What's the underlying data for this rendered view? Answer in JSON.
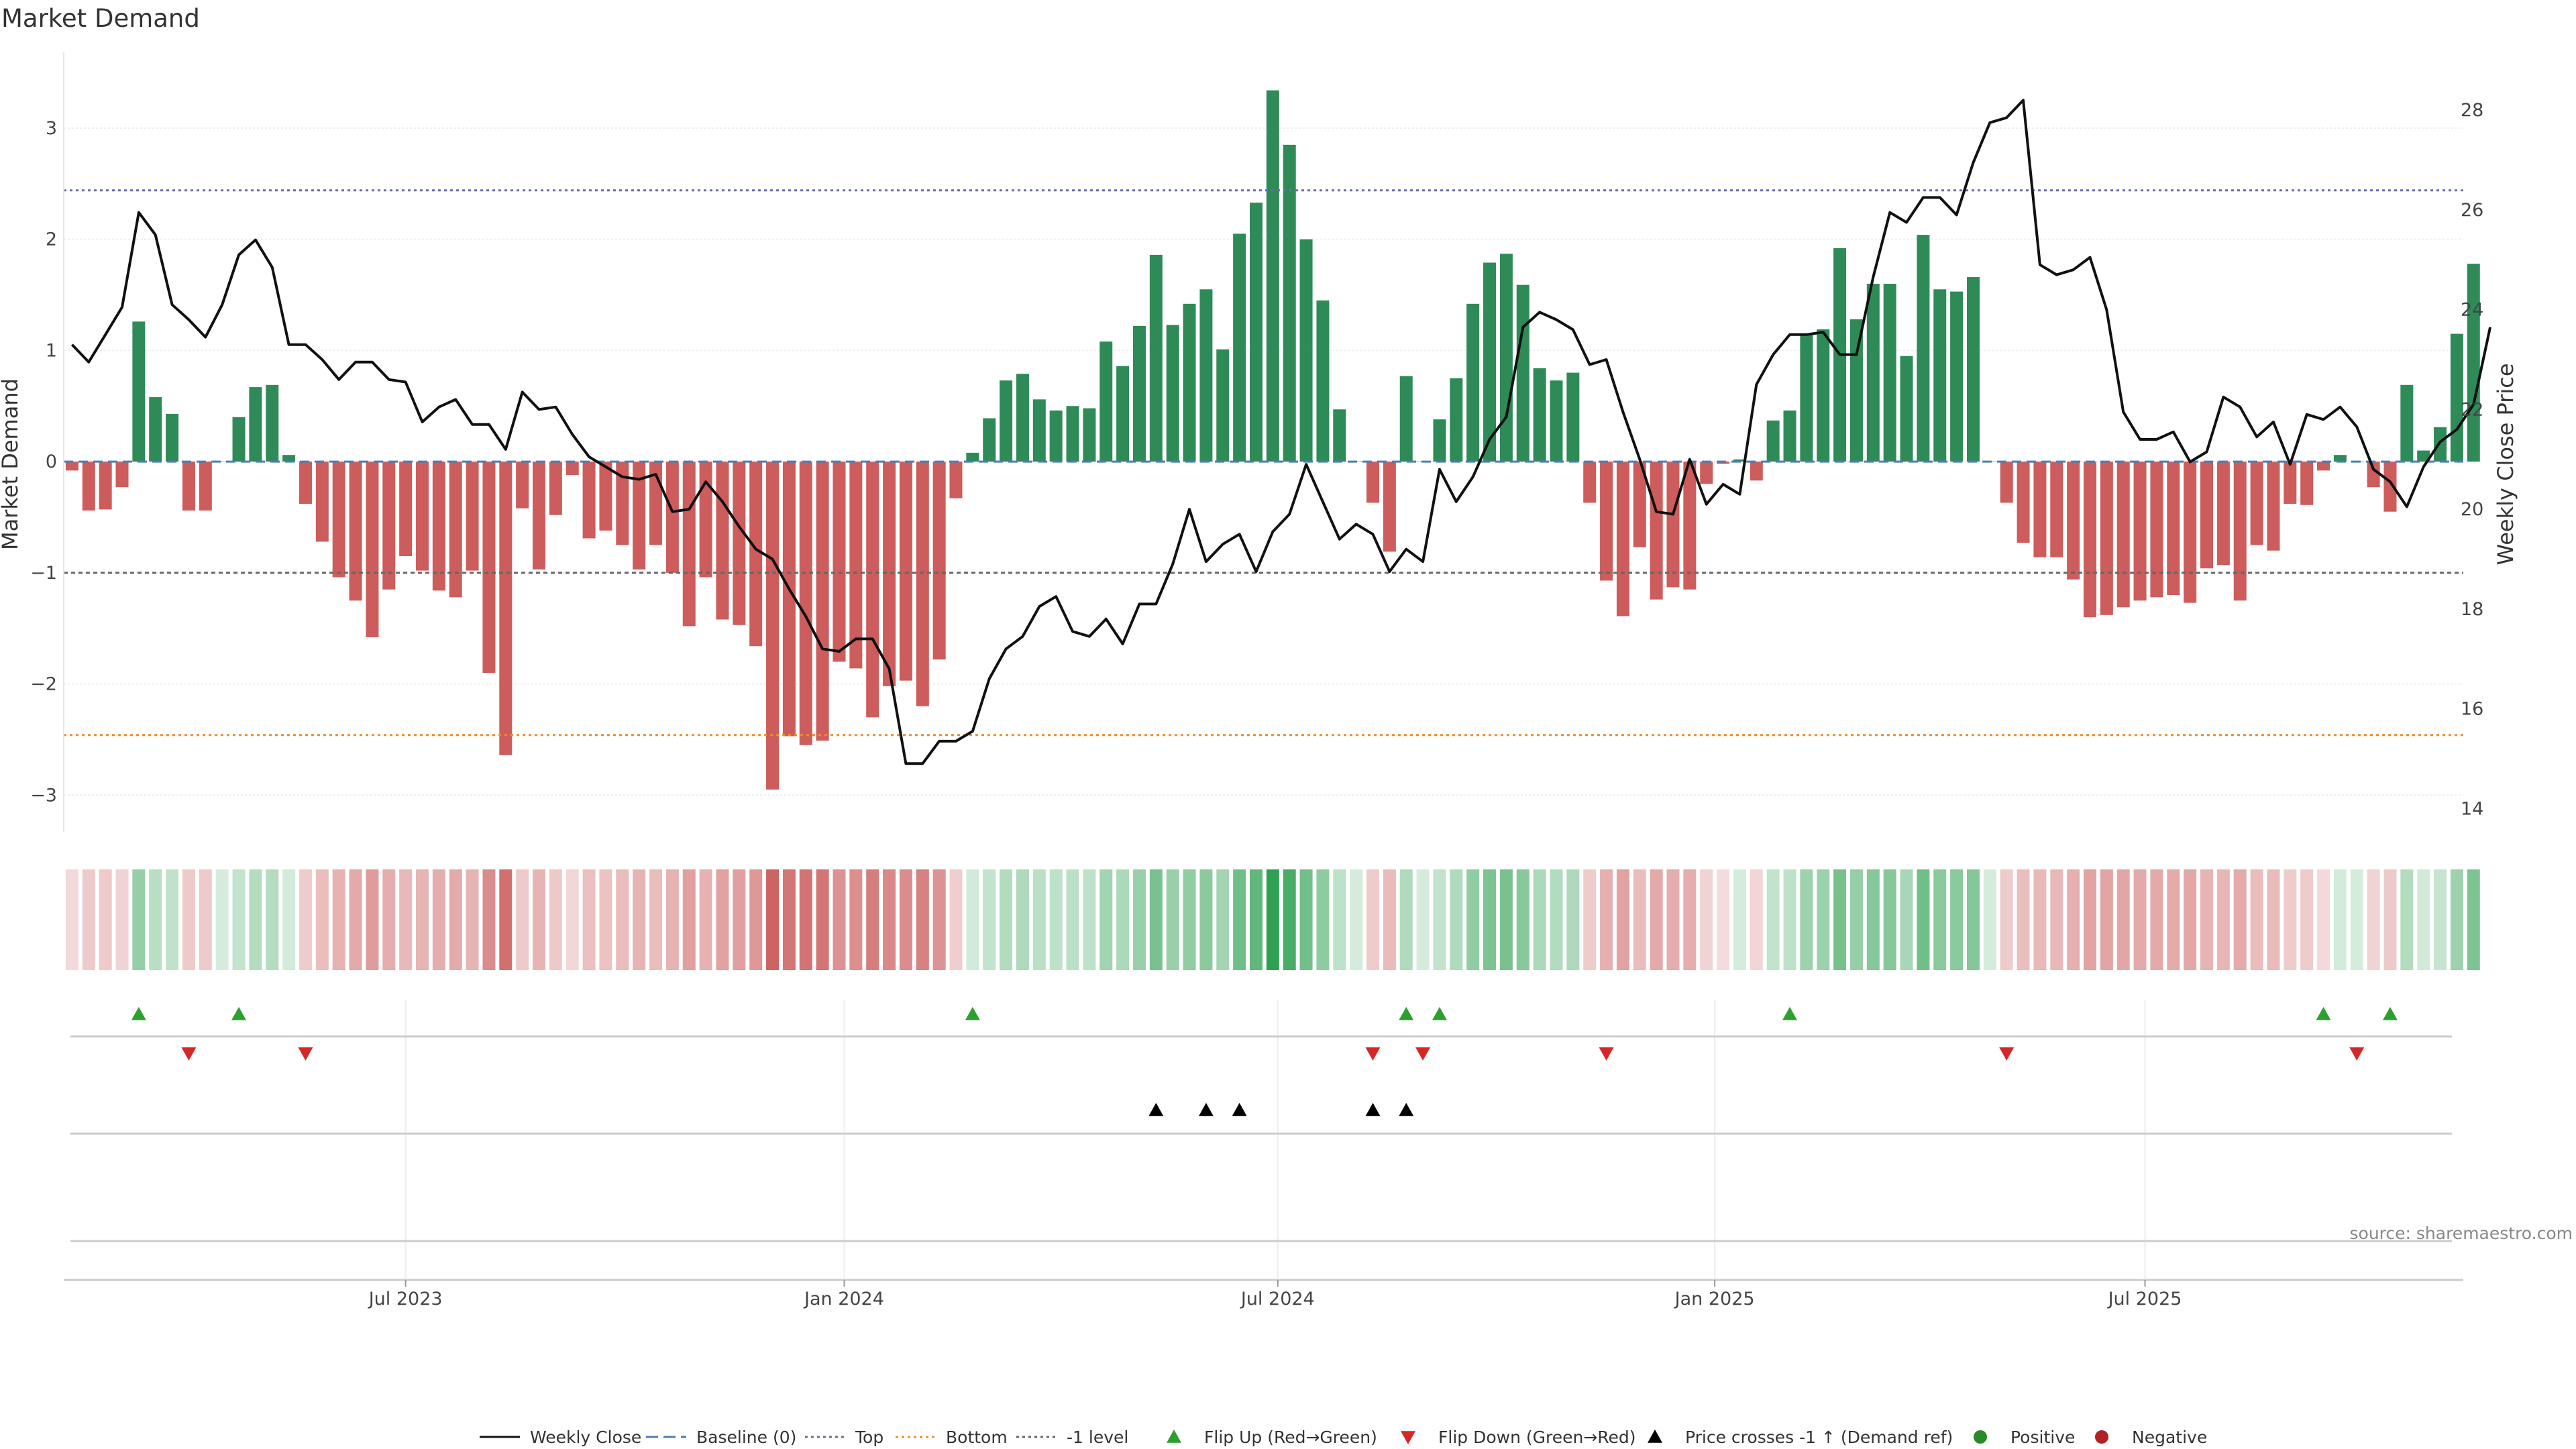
{
  "chart_data": {
    "type": "bar",
    "title": "Market Demand",
    "ylabel": "Market Demand",
    "y2label": "Weekly Close Price",
    "ylim": [
      -3.3,
      3.7
    ],
    "y2lim": [
      13.6,
      29.2
    ],
    "yticks": [
      3,
      2,
      1,
      0,
      -1,
      -2,
      -3
    ],
    "y2ticks": [
      28,
      26,
      24,
      22,
      20,
      18,
      16,
      14
    ],
    "ytick_labels": [
      "3",
      "2",
      "1",
      "0",
      "−1",
      "−2",
      "−3"
    ],
    "y2tick_labels": [
      "28",
      "26",
      "24",
      "22",
      "20",
      "18",
      "16",
      "14"
    ],
    "reference_lines": {
      "top": 2.44,
      "bottom": -2.46,
      "minus_one": -1.0,
      "baseline": 0
    },
    "x_start": "2023-02-13",
    "week_count": 144,
    "xticks": [
      {
        "label": "Jul 2023",
        "week": 20
      },
      {
        "label": "Jan 2024",
        "week": 46.3
      },
      {
        "label": "Jul 2024",
        "week": 72.3
      },
      {
        "label": "Jan 2025",
        "week": 98.5
      },
      {
        "label": "Jul 2025",
        "week": 124.3
      }
    ],
    "series": [
      {
        "name": "Market Demand",
        "type": "bar",
        "values": [
          -0.08,
          -0.44,
          -0.43,
          -0.23,
          1.26,
          0.58,
          0.43,
          -0.44,
          -0.44,
          0.0,
          0.4,
          0.67,
          0.69,
          0.06,
          -0.38,
          -0.72,
          -1.04,
          -1.25,
          -1.58,
          -1.15,
          -0.85,
          -0.98,
          -1.16,
          -1.22,
          -0.98,
          -1.9,
          -2.64,
          -0.42,
          -0.97,
          -0.48,
          -0.12,
          -0.69,
          -0.62,
          -0.75,
          -0.97,
          -0.75,
          -1.0,
          -1.48,
          -1.04,
          -1.42,
          -1.47,
          -1.66,
          -2.95,
          -2.47,
          -2.55,
          -2.51,
          -1.8,
          -1.86,
          -2.3,
          -2.02,
          -1.97,
          -2.2,
          -1.78,
          -0.33,
          0.08,
          0.39,
          0.73,
          0.79,
          0.56,
          0.46,
          0.5,
          0.48,
          1.08,
          0.86,
          1.22,
          1.86,
          1.23,
          1.42,
          1.55,
          1.01,
          2.05,
          2.33,
          3.34,
          2.85,
          2.0,
          1.45,
          0.47,
          0.0,
          -0.37,
          -0.81,
          0.77,
          0.0,
          0.38,
          0.75,
          1.42,
          1.79,
          1.87,
          1.59,
          0.84,
          0.73,
          0.8,
          -0.37,
          -1.07,
          -1.39,
          -0.77,
          -1.24,
          -1.13,
          -1.15,
          -0.2,
          -0.02,
          0.02,
          -0.17,
          0.37,
          0.46,
          1.15,
          1.19,
          1.92,
          1.28,
          1.6,
          1.6,
          0.95,
          2.04,
          1.55,
          1.53,
          1.66,
          0.0,
          -0.37,
          -0.73,
          -0.86,
          -0.86,
          -1.06,
          -1.4,
          -1.38,
          -1.31,
          -1.25,
          -1.22,
          -1.2,
          -1.27,
          -0.96,
          -0.93,
          -1.25,
          -0.75,
          -0.8,
          -0.38,
          -0.39,
          -0.08,
          0.06,
          0.0,
          -0.23,
          -0.45,
          0.69,
          0.1,
          0.31,
          1.15,
          1.78
        ]
      },
      {
        "name": "Weekly Close",
        "type": "line",
        "axis": "y2",
        "values": [
          23.3,
          22.95,
          23.5,
          24.05,
          25.95,
          25.5,
          24.1,
          23.8,
          23.45,
          24.1,
          25.1,
          25.4,
          24.85,
          23.3,
          23.3,
          23.0,
          22.6,
          22.95,
          22.95,
          22.6,
          22.55,
          21.75,
          22.05,
          22.2,
          21.7,
          21.7,
          21.2,
          22.35,
          22.0,
          22.05,
          21.5,
          21.05,
          20.85,
          20.65,
          20.6,
          20.7,
          19.95,
          20.0,
          20.55,
          20.15,
          19.65,
          19.2,
          19.0,
          18.4,
          17.85,
          17.2,
          17.15,
          17.4,
          17.4,
          16.8,
          14.9,
          14.9,
          15.35,
          15.35,
          15.55,
          16.6,
          17.2,
          17.45,
          18.05,
          18.25,
          17.55,
          17.45,
          17.8,
          17.3,
          18.1,
          18.1,
          18.9,
          20.0,
          18.95,
          19.3,
          19.5,
          18.75,
          19.55,
          19.9,
          20.9,
          20.15,
          19.4,
          19.7,
          19.5,
          18.75,
          19.2,
          18.95,
          20.8,
          20.15,
          20.65,
          21.4,
          21.85,
          23.65,
          23.95,
          23.8,
          23.6,
          22.9,
          23.0,
          21.95,
          21.0,
          19.95,
          19.9,
          21.0,
          20.1,
          20.5,
          20.3,
          22.5,
          23.1,
          23.5,
          23.5,
          23.55,
          23.1,
          23.1,
          24.65,
          25.95,
          25.75,
          26.25,
          26.25,
          25.9,
          26.95,
          27.75,
          27.85,
          28.2,
          24.9,
          24.7,
          24.8,
          25.05,
          24.0,
          21.95,
          21.4,
          21.4,
          21.55,
          20.95,
          21.15,
          22.25,
          22.05,
          21.45,
          21.75,
          20.9,
          21.9,
          21.8,
          22.05,
          21.65,
          20.8,
          20.55,
          20.05,
          20.85,
          21.35,
          21.6,
          22.1,
          23.65
        ]
      }
    ],
    "flip_up_weeks": [
      4,
      10,
      54,
      80,
      82,
      103,
      135,
      139
    ],
    "flip_down_weeks": [
      7,
      14,
      78,
      81,
      92,
      116,
      137
    ],
    "price_cross_weeks": [
      65,
      68,
      70,
      78,
      80
    ],
    "legend": [
      {
        "label": "Weekly Close",
        "kind": "line",
        "color": "#111111"
      },
      {
        "label": "Baseline (0)",
        "kind": "dash",
        "color": "#4a7fb5"
      },
      {
        "label": "Top",
        "kind": "dot",
        "color": "#6a6ab8"
      },
      {
        "label": "Bottom",
        "kind": "dot",
        "color": "#f28c28"
      },
      {
        "label": "-1 level",
        "kind": "dot",
        "color": "#666666"
      },
      {
        "label": "Flip Up (Red→Green)",
        "kind": "tri-up",
        "color": "#2ca02c"
      },
      {
        "label": "Flip Down (Green→Red)",
        "kind": "tri-down",
        "color": "#d62728"
      },
      {
        "label": "Price crosses -1 ↑ (Demand ref)",
        "kind": "tri-up",
        "color": "#000000"
      },
      {
        "label": "Positive",
        "kind": "circle",
        "color": "#2a8a2a"
      },
      {
        "label": "Negative",
        "kind": "circle",
        "color": "#b22222"
      }
    ],
    "source": "source: sharemaestro.com",
    "colors": {
      "positive": "#2e8b57",
      "negative": "#cd5c5c",
      "line": "#111111",
      "top": "#6a6ab8",
      "bottom": "#f28c28",
      "minus_one": "#666666"
    }
  }
}
